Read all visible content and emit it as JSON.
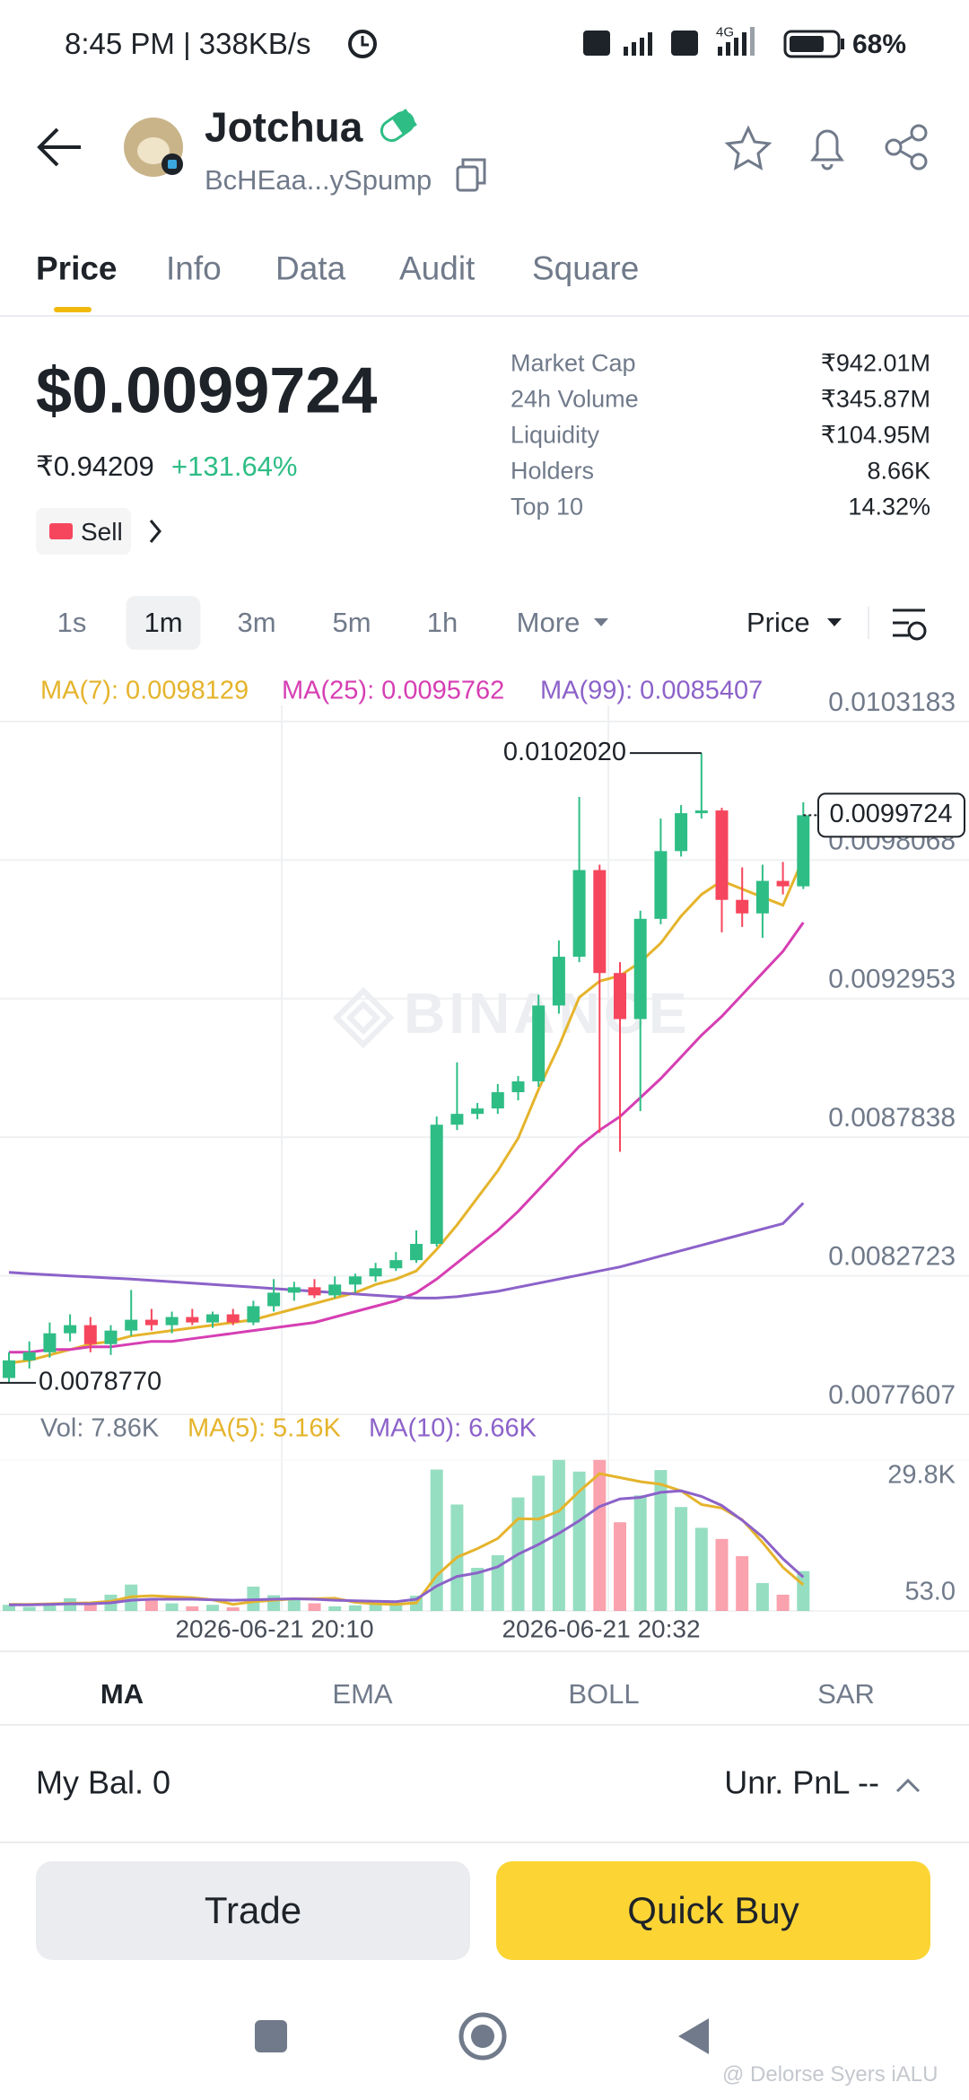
{
  "status_bar": {
    "time": "8:45 PM | 338KB/s",
    "network": "4G",
    "battery": "68%"
  },
  "header": {
    "name": "Jotchua",
    "address": "BcHEaa...ySpump"
  },
  "tabs": {
    "options": [
      "Price",
      "Info",
      "Data",
      "Audit",
      "Square"
    ],
    "active": 0
  },
  "price": {
    "usd": "$0.0099724",
    "inr": "₹0.94209",
    "change": "+131.64%",
    "sell": "Sell"
  },
  "stats": [
    {
      "label": "Market Cap",
      "value": "₹942.01M"
    },
    {
      "label": "24h Volume",
      "value": "₹345.87M"
    },
    {
      "label": "Liquidity",
      "value": "₹104.95M"
    },
    {
      "label": "Holders",
      "value": "8.66K"
    },
    {
      "label": "Top 10",
      "value": "14.32%"
    }
  ],
  "intervals": {
    "options": [
      "1s",
      "1m",
      "3m",
      "5m",
      "1h",
      "More"
    ],
    "active": 1,
    "mode": "Price"
  },
  "chart_data": {
    "type": "candlestick",
    "watermark": "BINANCE",
    "up_color": "#2ebd85",
    "down_color": "#f6465d",
    "open": [
      0.007895,
      0.00796,
      0.00799,
      0.00806,
      0.00809,
      0.00802,
      0.00807,
      0.00811,
      0.00809,
      0.00812,
      0.0081,
      0.00813,
      0.0081,
      0.00816,
      0.00821,
      0.00823,
      0.0082,
      0.00824,
      0.00827,
      0.0083,
      0.00833,
      0.00839,
      0.00883,
      0.00887,
      0.00889,
      0.00895,
      0.00899,
      0.00927,
      0.00945,
      0.00977,
      0.00939,
      0.00922,
      0.00959,
      0.00984,
      0.00998,
      0.00999,
      0.00966,
      0.00961,
      0.00973,
      0.00971
    ],
    "high": [
      0.00799,
      0.00803,
      0.0081,
      0.00813,
      0.00812,
      0.00809,
      0.00822,
      0.00815,
      0.00814,
      0.00815,
      0.00814,
      0.00815,
      0.00818,
      0.00826,
      0.00825,
      0.00826,
      0.00827,
      0.00828,
      0.00832,
      0.00836,
      0.00844,
      0.00886,
      0.00906,
      0.00891,
      0.00898,
      0.00901,
      0.00931,
      0.00951,
      0.01004,
      0.00979,
      0.00943,
      0.00962,
      0.00996,
      0.01001,
      0.010202,
      0.01,
      0.00978,
      0.00979,
      0.0098,
      0.01002
    ],
    "low": [
      0.007877,
      0.00793,
      0.00797,
      0.00803,
      0.00799,
      0.00798,
      0.00805,
      0.00807,
      0.00806,
      0.00809,
      0.00808,
      0.00809,
      0.00809,
      0.00814,
      0.00818,
      0.00819,
      0.00819,
      0.00821,
      0.00825,
      0.00829,
      0.00832,
      0.00838,
      0.00881,
      0.00885,
      0.00887,
      0.00892,
      0.00897,
      0.00924,
      0.00943,
      0.0088,
      0.00873,
      0.00888,
      0.00957,
      0.00982,
      0.00996,
      0.00954,
      0.00956,
      0.00952,
      0.00968,
      0.0097
    ],
    "close": [
      0.00796,
      0.00799,
      0.00806,
      0.00809,
      0.00802,
      0.00807,
      0.00811,
      0.00809,
      0.00812,
      0.0081,
      0.00813,
      0.0081,
      0.00816,
      0.00821,
      0.00823,
      0.0082,
      0.00824,
      0.00827,
      0.0083,
      0.00833,
      0.00839,
      0.00883,
      0.00887,
      0.00889,
      0.00895,
      0.00899,
      0.00927,
      0.00945,
      0.00977,
      0.00939,
      0.00922,
      0.00959,
      0.00984,
      0.00998,
      0.00999,
      0.00966,
      0.00961,
      0.00973,
      0.00971,
      0.0099724
    ],
    "ma": [
      {
        "name": "MA(7): 0.0098129",
        "color": "#e5b42c",
        "values": [
          0.00795,
          0.00796,
          0.00798,
          0.008,
          0.00802,
          0.00803,
          0.00805,
          0.00806,
          0.00807,
          0.00808,
          0.00809,
          0.0081,
          0.00811,
          0.00813,
          0.00815,
          0.00817,
          0.00819,
          0.00821,
          0.00824,
          0.00826,
          0.00829,
          0.00837,
          0.00846,
          0.00856,
          0.00866,
          0.00878,
          0.00896,
          0.00912,
          0.0093,
          0.00936,
          0.00938,
          0.00943,
          0.0095,
          0.0096,
          0.00968,
          0.00973,
          0.0097,
          0.00967,
          0.00964,
          0.0098129
        ]
      },
      {
        "name": "MA(25): 0.0095762",
        "color": "#d63eb3",
        "values": [
          0.00799,
          0.00799,
          0.008,
          0.008,
          0.00801,
          0.00801,
          0.00802,
          0.00803,
          0.00803,
          0.00804,
          0.00805,
          0.00806,
          0.00807,
          0.00808,
          0.00809,
          0.0081,
          0.00812,
          0.00814,
          0.00816,
          0.00818,
          0.00821,
          0.00826,
          0.00832,
          0.00838,
          0.00844,
          0.00851,
          0.00859,
          0.00867,
          0.00875,
          0.00881,
          0.00886,
          0.00893,
          0.009,
          0.00908,
          0.00916,
          0.00923,
          0.00931,
          0.00939,
          0.00947,
          0.0095762
        ]
      },
      {
        "name": "MA(99): 0.0085407",
        "color": "#8c62c9",
        "values": [
          0.008285,
          0.00828,
          0.008276,
          0.008272,
          0.008268,
          0.008264,
          0.00826,
          0.008255,
          0.00825,
          0.008245,
          0.00824,
          0.008235,
          0.00823,
          0.008225,
          0.00822,
          0.008215,
          0.00821,
          0.008205,
          0.0082,
          0.008195,
          0.00819,
          0.00819,
          0.008195,
          0.008205,
          0.008215,
          0.00823,
          0.008245,
          0.00826,
          0.008275,
          0.00829,
          0.008305,
          0.008325,
          0.008345,
          0.008365,
          0.008385,
          0.008405,
          0.008425,
          0.008445,
          0.008465,
          0.0085407
        ]
      }
    ],
    "ylim": [
      0.0077607,
      0.0103183
    ],
    "yticks": [
      0.0103183,
      0.0098068,
      0.0092953,
      0.0087838,
      0.0082723,
      0.0077607
    ],
    "high_label": {
      "value": 0.010202,
      "label": "0.0102020"
    },
    "low_label": {
      "value": 0.007877,
      "label": "0.0078770"
    },
    "last_price": 0.0099724,
    "x_labels": [
      "2026-06-21 20:10",
      "2026-06-21 20:32"
    ],
    "volume": {
      "label": "Vol: 7.86K",
      "values": [
        1200,
        800,
        1500,
        2500,
        1800,
        3200,
        5200,
        2400,
        1500,
        900,
        1200,
        700,
        4800,
        3100,
        2200,
        1500,
        900,
        1100,
        1300,
        1600,
        3000,
        27900,
        21000,
        8500,
        11000,
        22400,
        26700,
        29800,
        27500,
        29800,
        17500,
        22800,
        27800,
        20500,
        16400,
        14200,
        10800,
        5500,
        3200,
        7860
      ],
      "ma": [
        {
          "name": "MA(5): 5.16K",
          "color": "#e5b42c",
          "values": [
            1300,
            1300,
            1400,
            1500,
            1600,
            1900,
            2800,
            3000,
            2800,
            2600,
            2200,
            1300,
            1800,
            2100,
            2400,
            2400,
            2500,
            1700,
            1400,
            1300,
            1600,
            7000,
            10600,
            12300,
            14300,
            18200,
            18100,
            19700,
            23600,
            27100,
            26300,
            25500,
            25000,
            23700,
            21000,
            20300,
            18000,
            13500,
            8600,
            5160
          ]
        },
        {
          "name": "MA(10): 6.66K",
          "color": "#8c62c9",
          "values": [
            1200,
            1200,
            1300,
            1400,
            1400,
            1600,
            2100,
            2300,
            2300,
            2300,
            2200,
            2100,
            2200,
            2300,
            2400,
            2300,
            2100,
            2000,
            1900,
            1800,
            2300,
            4900,
            6800,
            7500,
            8700,
            11200,
            13100,
            15300,
            17800,
            20600,
            22100,
            22400,
            23400,
            23700,
            22600,
            20800,
            17900,
            14600,
            10300,
            6660
          ]
        }
      ],
      "ylim": [
        0,
        31000
      ],
      "yticks": [
        {
          "value": 29800,
          "label": "29.8K"
        },
        {
          "value": 53,
          "label": "53.0"
        }
      ]
    }
  },
  "indicators": {
    "options": [
      "MA",
      "EMA",
      "BOLL",
      "SAR"
    ],
    "active": 0
  },
  "balance": {
    "label": "My Bal. 0",
    "pnl": "Unr. PnL --"
  },
  "buttons": {
    "trade": "Trade",
    "quick_buy": "Quick Buy"
  },
  "watermark": "@ Delorse Syers iALU"
}
